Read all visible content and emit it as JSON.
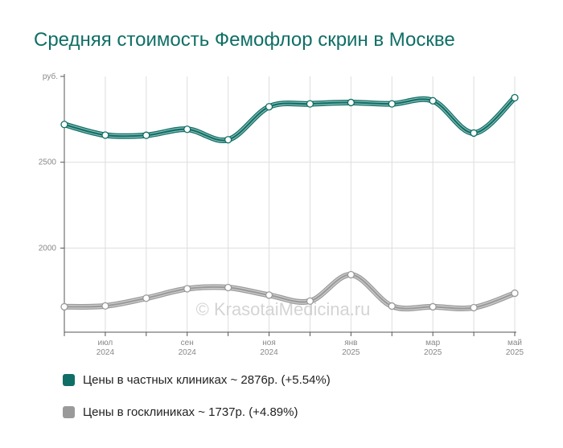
{
  "chart_data": {
    "type": "line",
    "title": "Средняя стоимость Фемофлор скрин в Москве",
    "ylabel": "руб.",
    "ylim": [
      1510,
      3000
    ],
    "yticks": [
      {
        "value": 2500,
        "label": "2500"
      },
      {
        "value": 2000,
        "label": "2000"
      }
    ],
    "x": [
      0,
      1,
      2,
      3,
      4,
      5,
      6,
      7,
      8,
      9,
      10,
      11
    ],
    "xticks": [
      {
        "x": 1,
        "month": "июл",
        "year": "2024"
      },
      {
        "x": 3,
        "month": "сен",
        "year": "2024"
      },
      {
        "x": 5,
        "month": "ноя",
        "year": "2024"
      },
      {
        "x": 7,
        "month": "янв",
        "year": "2025"
      },
      {
        "x": 9,
        "month": "мар",
        "year": "2025"
      },
      {
        "x": 11,
        "month": "май",
        "year": "2025"
      }
    ],
    "grid": true,
    "legend_position": "bottom-left",
    "watermark": "© KrasotaiMedicina.ru",
    "series": [
      {
        "name": "Цены в частных клиниках ~ 2876р. (+5.54%)",
        "color": "#0f6f66",
        "values": [
          2720,
          2658,
          2657,
          2692,
          2631,
          2823,
          2840,
          2848,
          2840,
          2858,
          2670,
          2876
        ]
      },
      {
        "name": "Цены в госклиниках ~ 1737р. (+4.89%)",
        "color": "#9a9a9a",
        "values": [
          1658,
          1663,
          1708,
          1763,
          1770,
          1726,
          1691,
          1845,
          1662,
          1658,
          1653,
          1737
        ]
      }
    ]
  }
}
